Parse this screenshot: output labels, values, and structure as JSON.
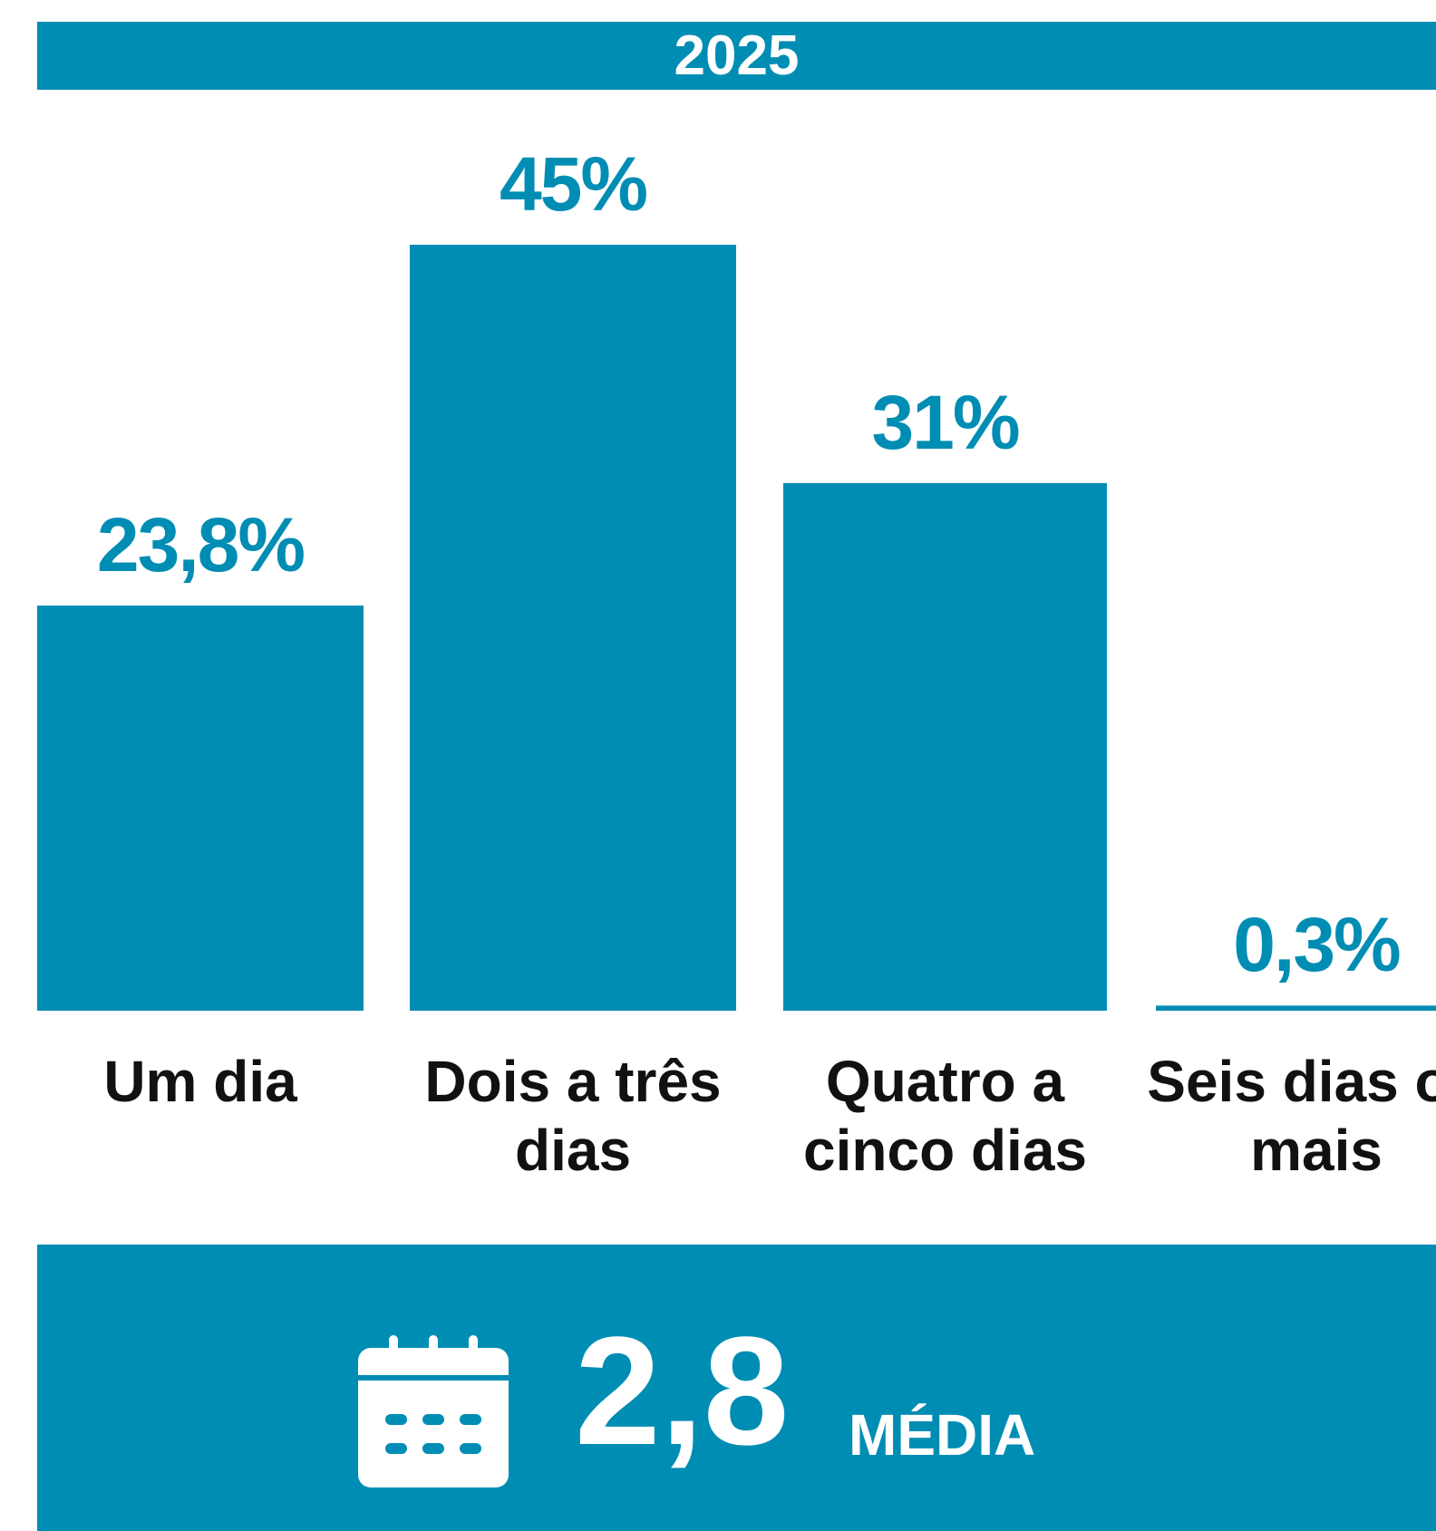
{
  "chart_data": {
    "type": "bar",
    "title": "2025",
    "categories": [
      "Um dia",
      "Dois a três dias",
      "Quatro a cinco dias",
      "Seis dias ou mais"
    ],
    "values": [
      23.8,
      45,
      31,
      0.3
    ],
    "value_labels": [
      "23,8%",
      "45%",
      "31%",
      "0,3%"
    ],
    "color": "#008db4"
  },
  "summary": {
    "value": 2.8,
    "value_label": "2,8",
    "label": "MÉDIA"
  }
}
